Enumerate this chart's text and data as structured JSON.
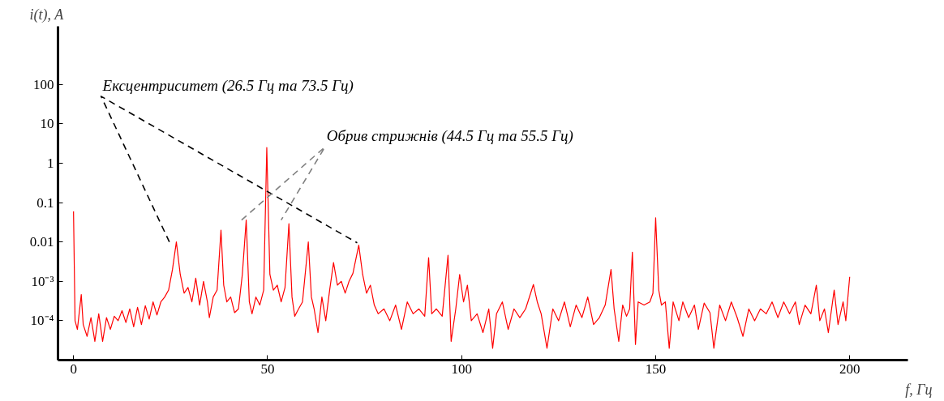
{
  "chart_data": {
    "type": "line",
    "xlabel": "f, Гц",
    "ylabel": "i(t), A",
    "log": "y",
    "grid": false,
    "marker": "none",
    "xlim": [
      -4,
      215
    ],
    "xticks": [
      0,
      50,
      100,
      150,
      200
    ],
    "ylim": [
      1e-05,
      3000
    ],
    "yticks": [
      {
        "value": 0.0001,
        "label": "10⁻⁴"
      },
      {
        "value": 0.001,
        "label": "10⁻³"
      },
      0.01,
      0.1,
      1,
      10,
      100
    ],
    "annotations": [
      {
        "text": "Ексцентриситет (26.5 Гц та 73.5 Гц)",
        "x": 7.1,
        "y": 50
      },
      {
        "text": "Обрив стрижнів (44.5 Гц та 55.5 Гц)",
        "x": 64.8,
        "y": 2.6
      }
    ],
    "series": [
      {
        "color": "#ff0000",
        "line_style": "solid",
        "x": [
          0,
          0.4,
          1,
          2,
          2.5,
          3.5,
          4.5,
          5.5,
          6.5,
          7.5,
          8.5,
          9.5,
          10.5,
          11.5,
          12.5,
          13.5,
          14.5,
          15.5,
          16.5,
          17.5,
          18.5,
          19.5,
          20.5,
          21.5,
          22.5,
          23.5,
          24.5,
          25.5,
          26.5,
          27.5,
          28.5,
          29.5,
          30.5,
          31.5,
          32.5,
          33.5,
          34.5,
          35,
          36,
          37,
          38,
          38.7,
          39.5,
          40.5,
          41.5,
          42.5,
          43.5,
          44.5,
          45.3,
          46,
          47,
          48,
          49,
          49.8,
          50.6,
          51.5,
          52.5,
          53.5,
          54.5,
          55.5,
          56.3,
          57,
          58,
          59,
          60.5,
          61.3,
          62,
          63,
          64,
          65,
          66,
          67,
          68,
          69,
          70,
          71,
          72,
          73.5,
          74.5,
          75.5,
          76.5,
          77.5,
          78.5,
          80,
          81.5,
          83,
          84.5,
          86,
          87.5,
          89,
          90.5,
          91.5,
          92.3,
          93.5,
          95,
          96.5,
          97.3,
          98.5,
          99.5,
          100.5,
          101.5,
          102.5,
          104,
          105.5,
          107,
          108,
          109,
          110.5,
          112,
          113.5,
          115,
          116.5,
          118.5,
          119.5,
          120.5,
          122,
          123.5,
          125,
          126.5,
          128,
          129.5,
          131,
          132.5,
          134,
          135.5,
          137,
          138.5,
          139.3,
          140.5,
          141.5,
          142.5,
          143.3,
          144,
          144.8,
          145.5,
          147,
          148.5,
          149.3,
          150,
          150.8,
          151.5,
          152.5,
          153.5,
          154.5,
          156,
          157,
          158.5,
          160,
          161,
          162.5,
          164,
          165,
          166.5,
          168,
          169.5,
          171,
          172.5,
          174,
          175.5,
          177,
          178.5,
          180,
          181.5,
          183,
          184.5,
          186,
          187,
          188.5,
          190,
          191.4,
          192.3,
          193.5,
          194.5,
          196,
          197,
          198.3,
          199,
          200
        ],
        "values": [
          0.06,
          0.0001,
          6e-05,
          0.00046,
          8e-05,
          4e-05,
          0.00012,
          3e-05,
          0.00015,
          3e-05,
          0.00012,
          6e-05,
          0.00013,
          0.0001,
          0.00018,
          9e-05,
          0.0002,
          7e-05,
          0.00022,
          8e-05,
          0.00024,
          0.00011,
          0.0003,
          0.00014,
          0.0003,
          0.0004,
          0.0006,
          0.002,
          0.01,
          0.0015,
          0.0005,
          0.0007,
          0.0003,
          0.0012,
          0.00025,
          0.001,
          0.0003,
          0.00012,
          0.0004,
          0.0006,
          0.02,
          0.0008,
          0.0003,
          0.0004,
          0.00016,
          0.0002,
          0.0015,
          0.036,
          0.0003,
          0.00015,
          0.0004,
          0.00025,
          0.0006,
          2.5,
          0.0015,
          0.0006,
          0.0008,
          0.0003,
          0.0007,
          0.029,
          0.0004,
          0.00013,
          0.0002,
          0.0003,
          0.01,
          0.0004,
          0.0002,
          5e-05,
          0.0004,
          0.0001,
          0.0006,
          0.003,
          0.0008,
          0.001,
          0.0005,
          0.001,
          0.0016,
          0.0083,
          0.0015,
          0.0005,
          0.0008,
          0.00025,
          0.00015,
          0.0002,
          0.0001,
          0.00025,
          6e-05,
          0.0003,
          0.00015,
          0.0002,
          0.00013,
          0.004,
          0.00015,
          0.0002,
          0.00013,
          0.0046,
          3e-05,
          0.0002,
          0.0015,
          0.0003,
          0.0008,
          0.0001,
          0.00015,
          5e-05,
          0.0002,
          2e-05,
          0.00015,
          0.0003,
          6e-05,
          0.0002,
          0.00012,
          0.0002,
          0.00083,
          0.0003,
          0.00015,
          2e-05,
          0.0002,
          0.0001,
          0.0003,
          7e-05,
          0.00025,
          0.00012,
          0.0004,
          8e-05,
          0.00012,
          0.00025,
          0.002,
          0.0002,
          3e-05,
          0.00025,
          0.00013,
          0.0002,
          0.0055,
          2.5e-05,
          0.0003,
          0.00025,
          0.0003,
          0.0005,
          0.041,
          0.0006,
          0.00025,
          0.0003,
          2e-05,
          0.0003,
          0.0001,
          0.0003,
          0.00012,
          0.00025,
          6e-05,
          0.00028,
          0.00016,
          2e-05,
          0.00025,
          0.0001,
          0.0003,
          0.00012,
          4e-05,
          0.0002,
          0.0001,
          0.0002,
          0.00015,
          0.0003,
          0.00012,
          0.0003,
          0.00015,
          0.0003,
          8e-05,
          0.00025,
          0.00015,
          0.0008,
          0.0001,
          0.0002,
          5e-05,
          0.0006,
          8e-05,
          0.0003,
          0.0001,
          0.0013
        ]
      },
      {
        "color": "#000000",
        "line_style": "dashed",
        "x": [
          24.7,
          7.1,
          73.1
        ],
        "values": [
          0.01,
          50,
          0.0095
        ]
      },
      {
        "color": "#808080",
        "line_style": "dashed",
        "x": [
          43.3,
          64.8,
          53.5
        ],
        "values": [
          0.036,
          2.6,
          0.036
        ]
      }
    ]
  }
}
